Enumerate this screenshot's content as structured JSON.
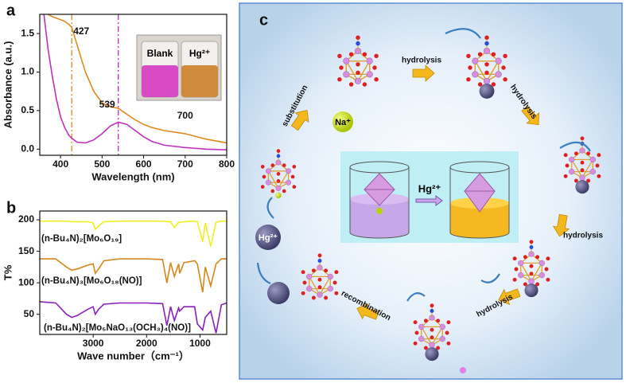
{
  "chart_data": [
    {
      "type": "line",
      "panel_label": "a",
      "x_label": "Wavelength (nm)",
      "y_label": "Absorbance (a.u.)",
      "x": [
        350,
        360,
        370,
        380,
        390,
        400,
        410,
        420,
        427,
        440,
        460,
        480,
        500,
        520,
        539,
        560,
        580,
        600,
        620,
        650,
        700,
        750,
        800
      ],
      "series": [
        {
          "color": "#e08a1e",
          "values": [
            null,
            null,
            1.75,
            1.72,
            1.7,
            1.68,
            1.66,
            1.62,
            1.58,
            1.35,
            1.0,
            0.75,
            0.6,
            0.55,
            0.53,
            0.45,
            0.38,
            0.32,
            0.28,
            0.24,
            0.2,
            0.13,
            0.08
          ]
        },
        {
          "color": "#c030c0",
          "values": [
            null,
            1.75,
            1.3,
            0.95,
            0.65,
            0.42,
            0.28,
            0.18,
            0.14,
            0.09,
            0.08,
            0.12,
            0.2,
            0.3,
            0.35,
            0.32,
            0.24,
            0.16,
            0.1,
            0.05,
            0.02,
            0.0,
            -0.01
          ]
        }
      ],
      "vlines": [
        {
          "x": 427,
          "color": "#e08a1e"
        },
        {
          "x": 539,
          "color": "#c030c0"
        }
      ],
      "peak_labels": [
        427,
        539,
        700
      ],
      "inset_labels": [
        "Blank",
        "Hg²⁺"
      ],
      "xlim": [
        350,
        800
      ],
      "xticks": [
        400,
        500,
        600,
        700,
        800
      ],
      "ylim": [
        -0.08,
        1.75
      ],
      "yticks": [
        {
          "value": 0,
          "label": "0.0"
        },
        {
          "value": 0.5,
          "label": "0.5"
        },
        {
          "value": 1,
          "label": "1.0"
        },
        {
          "value": 1.5,
          "label": "1.5"
        }
      ]
    },
    {
      "type": "line",
      "panel_label": "b",
      "x_label": "Wave number（cm⁻¹）",
      "y_label": "T%",
      "x": [
        4000,
        3700,
        3500,
        3400,
        3300,
        3100,
        3000,
        2960,
        2900,
        2800,
        2500,
        2000,
        1700,
        1620,
        1550,
        1480,
        1400,
        1380,
        1300,
        1100,
        1050,
        950,
        900,
        800,
        700,
        600,
        500
      ],
      "series": [
        {
          "name": "(n-Bu₄N)₂[Mo₆O₁₉]",
          "color": "#f0f020",
          "values": [
            198,
            198,
            198,
            197,
            197,
            197,
            195,
            185,
            190,
            197,
            198,
            198,
            198,
            197,
            197,
            188,
            196,
            196,
            197,
            198,
            197,
            165,
            195,
            158,
            196,
            198,
            198
          ]
        },
        {
          "name": "(n-Bu₄N)₃[Mo₆O₁₈(NO)]",
          "color": "#d9861a",
          "values": [
            138,
            138,
            125,
            120,
            122,
            128,
            130,
            115,
            122,
            135,
            138,
            138,
            137,
            100,
            132,
            110,
            130,
            115,
            132,
            135,
            130,
            85,
            125,
            95,
            130,
            138,
            138
          ]
        },
        {
          "name": "(n-Bu₄N)₂[Mo₅NaO₁₃(OCH₃)₄(NO)]",
          "color": "#8a1fc0",
          "values": [
            70,
            68,
            50,
            45,
            48,
            58,
            62,
            50,
            58,
            66,
            68,
            68,
            67,
            32,
            62,
            40,
            60,
            55,
            62,
            62,
            35,
            25,
            45,
            55,
            20,
            65,
            68
          ]
        }
      ],
      "xlim": [
        4000,
        500
      ],
      "xticks": [
        3000,
        2000,
        1000
      ],
      "ylim": [
        18,
        214
      ],
      "yticks": [
        50,
        100,
        150,
        200
      ]
    }
  ],
  "diagram": {
    "panel_label": "c",
    "steps": [
      "hydrolysis",
      "hydrolysis",
      "hydrolysis",
      "hydrolysis",
      "recombination",
      "substitution"
    ],
    "ions": [
      "Na⁺",
      "Hg²⁺"
    ],
    "center_label": "Hg²⁺"
  }
}
